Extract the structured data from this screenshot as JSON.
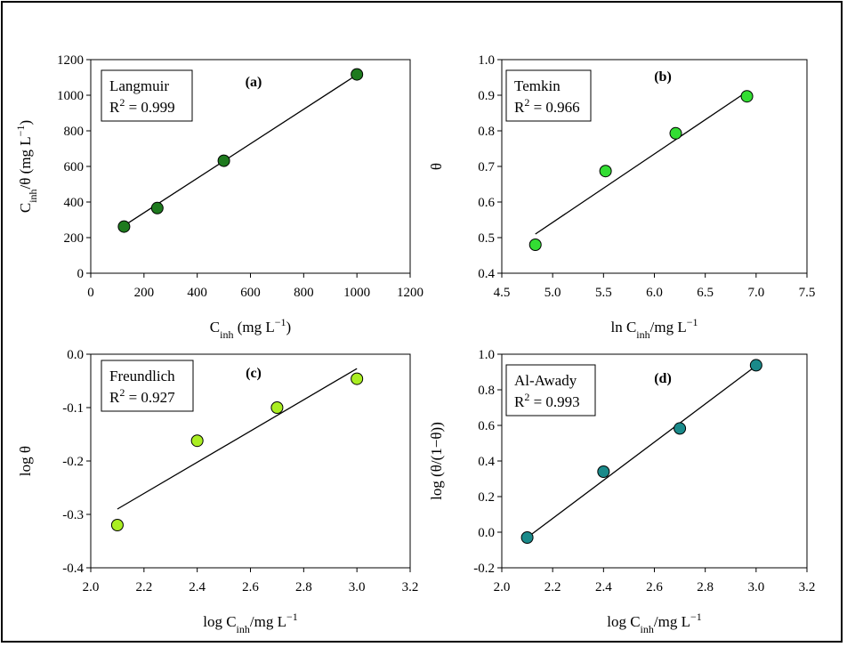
{
  "chart_data": [
    {
      "type": "scatter",
      "panel_label": "(a)",
      "model": "Langmuir",
      "r2": "0.999",
      "xlabel": {
        "base": "C",
        "sub": "inh",
        "rest": " (mg L",
        "sup": "−1",
        "tail": ")"
      },
      "ylabel": {
        "base": "C",
        "sub": "inh",
        "rest": "/θ (mg L",
        "sup": "−1",
        "tail": ")"
      },
      "xlim": [
        0,
        1200
      ],
      "ylim": [
        0,
        1200
      ],
      "xticks": [
        "0",
        "200",
        "400",
        "600",
        "800",
        "1000",
        "1200"
      ],
      "yticks": [
        "0",
        "200",
        "400",
        "600",
        "800",
        "1000",
        "1200"
      ],
      "x": [
        125,
        250,
        500,
        1000
      ],
      "y": [
        262,
        366,
        632,
        1117
      ],
      "fit": {
        "x1": 120,
        "y1": 262,
        "x2": 1000,
        "y2": 1115
      },
      "marker_color": "#1e7a1e"
    },
    {
      "type": "scatter",
      "panel_label": "(b)",
      "model": "Temkin",
      "r2": "0.966",
      "xlabel": {
        "base": "ln C",
        "sub": "inh",
        "rest": "/mg L",
        "sup": "−1",
        "tail": ""
      },
      "ylabel": {
        "base": "θ",
        "sub": "",
        "rest": "",
        "sup": "",
        "tail": ""
      },
      "xlim": [
        4.5,
        7.5
      ],
      "ylim": [
        0.4,
        1.0
      ],
      "xticks": [
        "4.5",
        "5.0",
        "5.5",
        "6.0",
        "6.5",
        "7.0",
        "7.5"
      ],
      "yticks": [
        "0.4",
        "0.5",
        "0.6",
        "0.7",
        "0.8",
        "0.9",
        "1.0"
      ],
      "x": [
        4.83,
        5.52,
        6.21,
        6.91
      ],
      "y": [
        0.48,
        0.687,
        0.793,
        0.897
      ],
      "fit": {
        "x1": 4.83,
        "y1": 0.51,
        "x2": 6.91,
        "y2": 0.91
      },
      "marker_color": "#33dd33"
    },
    {
      "type": "scatter",
      "panel_label": "(c)",
      "model": "Freundlich",
      "r2": "0.927",
      "xlabel": {
        "base": "log C",
        "sub": "inh",
        "rest": "/mg L",
        "sup": "−1",
        "tail": ""
      },
      "ylabel": {
        "base": "log θ",
        "sub": "",
        "rest": "",
        "sup": "",
        "tail": ""
      },
      "xlim": [
        2.0,
        3.2
      ],
      "ylim": [
        -0.4,
        0.0
      ],
      "xticks": [
        "2.0",
        "2.2",
        "2.4",
        "2.6",
        "2.8",
        "3.0",
        "3.2"
      ],
      "yticks": [
        "-0.4",
        "-0.3",
        "-0.2",
        "-0.1",
        "0.0"
      ],
      "x": [
        2.1,
        2.4,
        2.7,
        3.0
      ],
      "y": [
        -0.32,
        -0.162,
        -0.1,
        -0.046
      ],
      "fit": {
        "x1": 2.1,
        "y1": -0.29,
        "x2": 3.0,
        "y2": -0.027
      },
      "marker_color": "#aaee22"
    },
    {
      "type": "scatter",
      "panel_label": "(d)",
      "model": "Al-Awady",
      "r2": "0.993",
      "xlabel": {
        "base": "log C",
        "sub": "inh",
        "rest": "/mg L",
        "sup": "−1",
        "tail": ""
      },
      "ylabel": {
        "base": "log (θ/(1−θ))",
        "sub": "",
        "rest": "",
        "sup": "",
        "tail": ""
      },
      "xlim": [
        2.0,
        3.2
      ],
      "ylim": [
        -0.2,
        1.0
      ],
      "xticks": [
        "2.0",
        "2.2",
        "2.4",
        "2.6",
        "2.8",
        "3.0",
        "3.2"
      ],
      "yticks": [
        "-0.2",
        "0.0",
        "0.2",
        "0.4",
        "0.6",
        "0.8",
        "1.0"
      ],
      "x": [
        2.1,
        2.4,
        2.7,
        3.0
      ],
      "y": [
        -0.03,
        0.34,
        0.583,
        0.938
      ],
      "fit": {
        "x1": 2.1,
        "y1": -0.03,
        "x2": 3.0,
        "y2": 0.935
      },
      "marker_color": "#1a8a8a"
    }
  ]
}
